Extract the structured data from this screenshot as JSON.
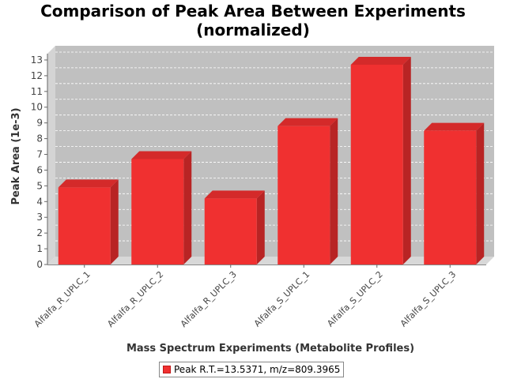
{
  "chart_data": {
    "type": "bar",
    "title_lines": [
      "Comparison of Peak Area Between Experiments",
      "(normalized)"
    ],
    "xlabel": "Mass Spectrum Experiments (Metabolite Profiles)",
    "ylabel": "Peak Area (1e-3)",
    "categories": [
      "Alfalfa_R_UPLC_1",
      "Alfalfa_R_UPLC_2",
      "Alfalfa_R_UPLC_3",
      "Alfalfa_S_UPLC_1",
      "Alfalfa_S_UPLC_2",
      "Alfalfa_S_UPLC_3"
    ],
    "series": [
      {
        "name": "Peak R.T.=13.5371, m/z=809.3965",
        "values": [
          4.9,
          6.7,
          4.2,
          8.8,
          12.7,
          8.5
        ],
        "color": "#f03030"
      }
    ],
    "ylim": [
      0,
      13.4
    ],
    "yticks": [
      0,
      1,
      2,
      3,
      4,
      5,
      6,
      7,
      8,
      9,
      10,
      11,
      12,
      13
    ],
    "grid": true,
    "legend_position": "bottom",
    "colors": {
      "plot_background": "#c0c0c0",
      "bar": "#f03030",
      "bar_side": "#b82424",
      "bar_top": "#d42a2a"
    }
  }
}
